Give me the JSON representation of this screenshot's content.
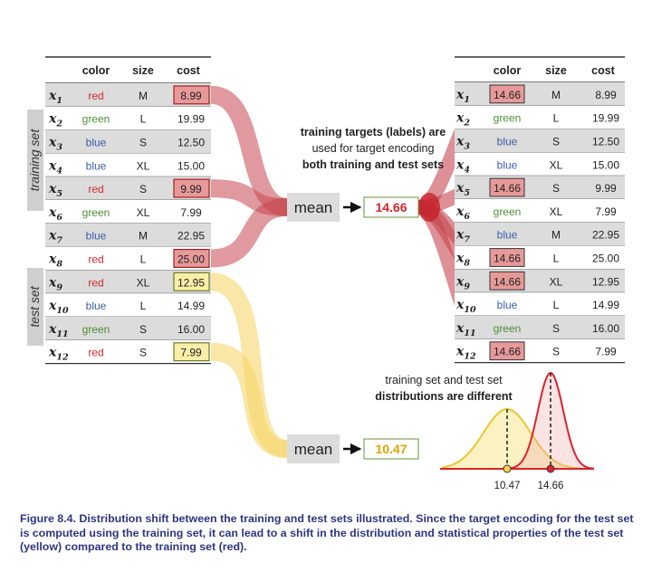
{
  "left_table": {
    "headers": [
      "color",
      "size",
      "cost"
    ],
    "rows": [
      {
        "id": "x",
        "sub": "1",
        "color": "red",
        "size": "M",
        "cost": "8.99",
        "group": "train"
      },
      {
        "id": "x",
        "sub": "2",
        "color": "green",
        "size": "L",
        "cost": "19.99",
        "group": "train"
      },
      {
        "id": "x",
        "sub": "3",
        "color": "blue",
        "size": "S",
        "cost": "12.50",
        "group": "train"
      },
      {
        "id": "x",
        "sub": "4",
        "color": "blue",
        "size": "XL",
        "cost": "15.00",
        "group": "train"
      },
      {
        "id": "x",
        "sub": "5",
        "color": "red",
        "size": "S",
        "cost": "9.99",
        "group": "train"
      },
      {
        "id": "x",
        "sub": "6",
        "color": "green",
        "size": "XL",
        "cost": "7.99",
        "group": "train"
      },
      {
        "id": "x",
        "sub": "7",
        "color": "blue",
        "size": "M",
        "cost": "22.95",
        "group": "train"
      },
      {
        "id": "x",
        "sub": "8",
        "color": "red",
        "size": "L",
        "cost": "25.00",
        "group": "train"
      },
      {
        "id": "x",
        "sub": "9",
        "color": "red",
        "size": "XL",
        "cost": "12.95",
        "group": "test"
      },
      {
        "id": "x",
        "sub": "10",
        "color": "blue",
        "size": "L",
        "cost": "14.99",
        "group": "test"
      },
      {
        "id": "x",
        "sub": "11",
        "color": "green",
        "size": "S",
        "cost": "16.00",
        "group": "test"
      },
      {
        "id": "x",
        "sub": "12",
        "color": "red",
        "size": "S",
        "cost": "7.99",
        "group": "test"
      }
    ]
  },
  "right_table": {
    "headers": [
      "color",
      "size",
      "cost"
    ],
    "rows": [
      {
        "id": "x",
        "sub": "1",
        "color": "14.66",
        "size": "M",
        "cost": "8.99",
        "encoded": true
      },
      {
        "id": "x",
        "sub": "2",
        "color": "green",
        "size": "L",
        "cost": "19.99",
        "encoded": false
      },
      {
        "id": "x",
        "sub": "3",
        "color": "blue",
        "size": "S",
        "cost": "12.50",
        "encoded": false
      },
      {
        "id": "x",
        "sub": "4",
        "color": "blue",
        "size": "XL",
        "cost": "15.00",
        "encoded": false
      },
      {
        "id": "x",
        "sub": "5",
        "color": "14.66",
        "size": "S",
        "cost": "9.99",
        "encoded": true
      },
      {
        "id": "x",
        "sub": "6",
        "color": "green",
        "size": "XL",
        "cost": "7.99",
        "encoded": false
      },
      {
        "id": "x",
        "sub": "7",
        "color": "blue",
        "size": "M",
        "cost": "22.95",
        "encoded": false
      },
      {
        "id": "x",
        "sub": "8",
        "color": "14.66",
        "size": "L",
        "cost": "25.00",
        "encoded": true
      },
      {
        "id": "x",
        "sub": "9",
        "color": "14.66",
        "size": "XL",
        "cost": "12.95",
        "encoded": true
      },
      {
        "id": "x",
        "sub": "10",
        "color": "blue",
        "size": "L",
        "cost": "14.99",
        "encoded": false
      },
      {
        "id": "x",
        "sub": "11",
        "color": "green",
        "size": "S",
        "cost": "16.00",
        "encoded": false
      },
      {
        "id": "x",
        "sub": "12",
        "color": "14.66",
        "size": "S",
        "cost": "7.99",
        "encoded": true
      }
    ]
  },
  "labels": {
    "training_set": "training set",
    "test_set": "test set",
    "mean_train": "mean",
    "mean_test": "mean",
    "mean_train_value": "14.66",
    "mean_test_value": "10.47",
    "annotation_line1": "training targets (labels) are",
    "annotation_line2": "used for target encoding",
    "annotation_line3": "both training and test sets",
    "dist_line1": "training set and test set",
    "dist_line2": "distributions are different",
    "dist_tick_test": "10.47",
    "dist_tick_train": "14.66"
  },
  "caption": "Figure 8.4. Distribution shift between the training and test sets illustrated. Since the target encoding for the test set is computed using the training set, it can lead to a shift in the distribution and statistical properties of the test set (yellow) compared to the training set (red).",
  "colors": {
    "red": "#d8252b",
    "green": "#4e8c34",
    "blue": "#3a5ea8",
    "flow_red": "#c7464e",
    "flow_yellow": "#f6d56a",
    "mean_box": "#dcdcdc",
    "gray_row": "#dcdcdc",
    "cost_red": "#e79999",
    "cost_yellow": "#fbefa8",
    "mean_train_text": "#d8252b",
    "mean_test_text": "#e0a400"
  }
}
